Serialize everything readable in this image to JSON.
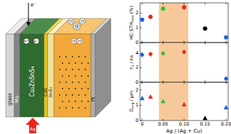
{
  "diagram": {
    "labels": [
      "e⁻",
      "h⁺",
      "e⁻",
      "glass",
      "Mo",
      "Cu₂ZnSnS₄",
      "CdS",
      "In₂S₃",
      "Pt",
      "H",
      "O",
      "H",
      "H",
      "H",
      "Ag"
    ]
  },
  "chart_data": [
    {
      "type": "scatter",
      "marker": "circle",
      "tick_labels": "y",
      "y_label": "HC-STH",
      "y_label_sub": "max",
      "y_label_suffix": " (%)",
      "x": [
        0,
        0.02,
        0.05,
        0.1,
        0.15,
        0.2
      ],
      "values": [
        1.55,
        1.75,
        2.3,
        2.4,
        0.95,
        0.35
      ],
      "colors": [
        "#1f5fd6",
        "#e8261e",
        "#2fbf2f",
        "#e8261e",
        "#000000",
        "#1f5fd6"
      ],
      "xlim": [
        -0.005,
        0.205
      ],
      "xticks": [
        0,
        0.05,
        {
          "value": 0.1,
          "label": "0.10"
        },
        0.15,
        {
          "value": 0.2,
          "label": "0.20"
        }
      ],
      "ylim": [
        0,
        2.7
      ],
      "yticks": [
        0,
        1,
        2
      ],
      "shaded_range": [
        0.04,
        0.11
      ]
    },
    {
      "type": "scatter",
      "marker": "diamond",
      "tick_labels": "y",
      "y_label": "τ",
      "y_label_sub": "1",
      "y_label_suffix": " / ns",
      "x": [
        0,
        0.02,
        0.05,
        0.1,
        0.15,
        0.2
      ],
      "values": [
        3.8,
        3.9,
        4.0,
        4.2,
        null,
        0.5
      ],
      "colors": [
        "#1f5fd6",
        "#e8261e",
        "#2fbf2f",
        "#e8261e",
        "#000000",
        "#1f5fd6"
      ],
      "xlim": [
        -0.005,
        0.205
      ],
      "xticks": [
        0,
        0.05,
        {
          "value": 0.1,
          "label": "0.10"
        },
        0.15,
        {
          "value": 0.2,
          "label": "0.20"
        }
      ],
      "ylim": [
        0,
        5.5
      ],
      "yticks": [
        0,
        2,
        4
      ],
      "shaded_range": [
        0.04,
        0.11
      ]
    },
    {
      "type": "scatter",
      "marker": "triangle",
      "y_label": "D",
      "y_label_sub": "avg",
      "y_label_suffix": " / μm",
      "x_label": "Ag / (Ag + Cu)",
      "x": [
        0,
        0.02,
        0.05,
        0.1,
        0.15,
        0.2
      ],
      "values": [
        1.45,
        1.55,
        1.25,
        1.05,
        0.15,
        0.85
      ],
      "colors": [
        "#1f5fd6",
        "#e8261e",
        "#2fbf2f",
        "#e8261e",
        "#000000",
        "#1f5fd6"
      ],
      "xlim": [
        -0.005,
        0.205
      ],
      "xticks": [
        0,
        0.05,
        {
          "value": 0.1,
          "label": "0.10"
        },
        0.15,
        {
          "value": 0.2,
          "label": "0.20"
        }
      ],
      "ylim": [
        0,
        2.5
      ],
      "yticks": [
        0,
        1,
        2
      ],
      "shaded_range": [
        0.04,
        0.11
      ]
    }
  ]
}
